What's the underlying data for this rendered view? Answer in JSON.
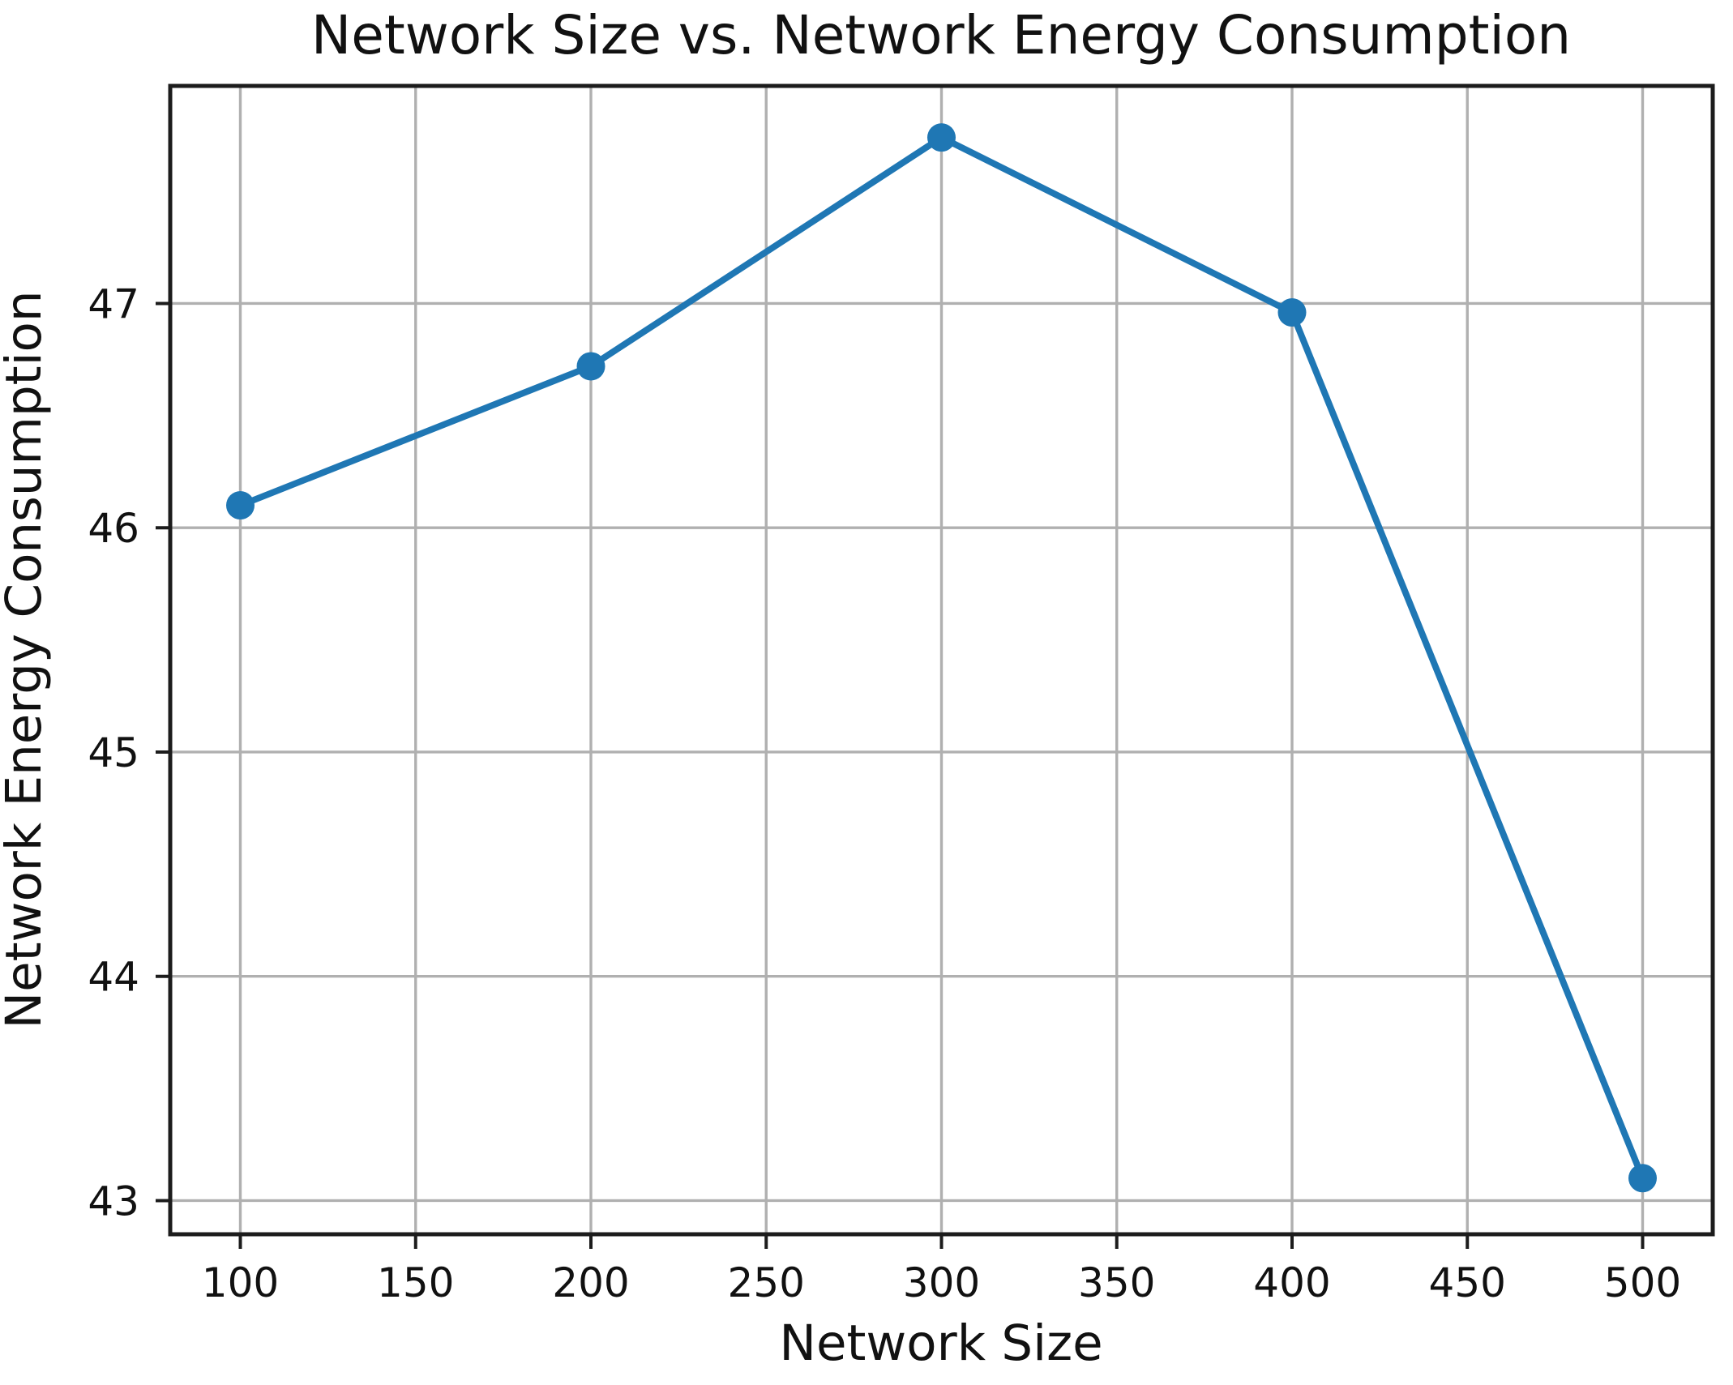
{
  "chart_data": {
    "type": "line",
    "title": "Network Size vs. Network Energy Consumption",
    "xlabel": "Network Size",
    "ylabel": "Network Energy Consumption",
    "series": [
      {
        "name": "Network Energy Consumption",
        "x": [
          100,
          200,
          300,
          400,
          500
        ],
        "y": [
          46.1,
          46.72,
          47.74,
          46.96,
          43.1
        ]
      }
    ],
    "xticks": [
      100,
      150,
      200,
      250,
      300,
      350,
      400,
      450,
      500
    ],
    "yticks": [
      43,
      44,
      45,
      46,
      47
    ],
    "xlim": [
      80,
      520
    ],
    "ylim": [
      42.85,
      47.97
    ],
    "grid": true,
    "legend": "none",
    "line_color": "#1f77b4",
    "marker": "circle",
    "grid_color": "#b0b0b0",
    "spine_color": "#1c1c1c",
    "text_color": "#111111",
    "background": "#ffffff"
  }
}
